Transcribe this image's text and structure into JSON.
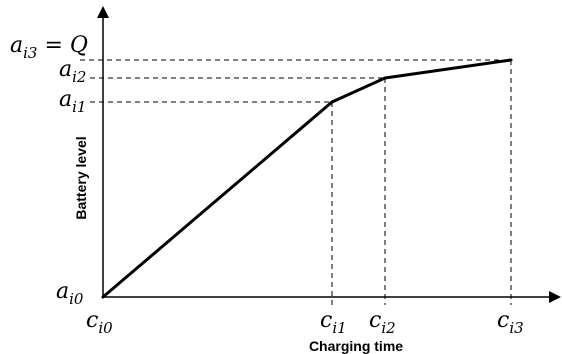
{
  "chart_data": {
    "type": "line",
    "xlabel": "Charging time",
    "ylabel": "Battery level",
    "x_tick_labels": [
      {
        "base": "c",
        "sub": "i0"
      },
      {
        "base": "c",
        "sub": "i1"
      },
      {
        "base": "c",
        "sub": "i2"
      },
      {
        "base": "c",
        "sub": "i3"
      }
    ],
    "y_tick_labels": [
      {
        "base": "a",
        "sub": "i0",
        "suffix": ""
      },
      {
        "base": "a",
        "sub": "i1",
        "suffix": ""
      },
      {
        "base": "a",
        "sub": "i2",
        "suffix": ""
      },
      {
        "base": "a",
        "sub": "i3",
        "suffix": " = Q"
      }
    ],
    "series": [
      {
        "points": [
          {
            "x": "c_i0",
            "y": "a_i0"
          },
          {
            "x": "c_i1",
            "y": "a_i1"
          },
          {
            "x": "c_i2",
            "y": "a_i2"
          },
          {
            "x": "c_i3",
            "y": "a_i3"
          }
        ]
      }
    ],
    "grid": false,
    "guide_lines": "dashed"
  }
}
